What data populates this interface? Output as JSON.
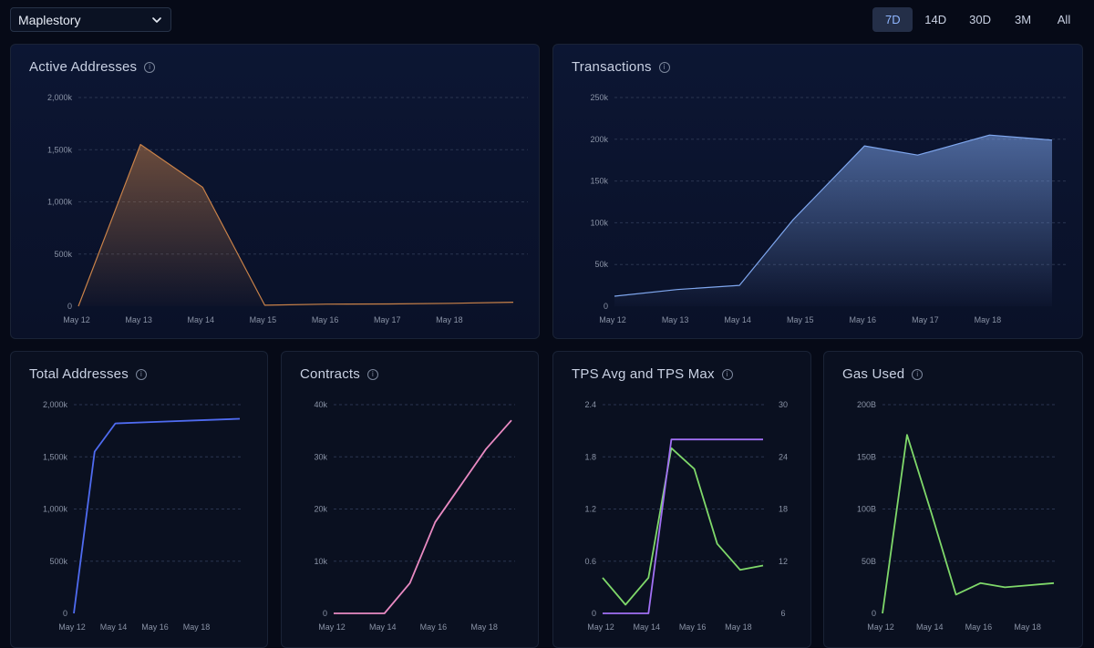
{
  "header": {
    "network_select": "Maplestory",
    "ranges": [
      "7D",
      "14D",
      "30D",
      "3M",
      "All"
    ],
    "active_range": "7D"
  },
  "colors": {
    "orange": "#c98249",
    "blue": "#7fa7ef",
    "royal": "#4f6bf0",
    "pink": "#e98ac2",
    "green": "#7fd86a",
    "purple": "#a170f4"
  },
  "chart_data": [
    {
      "id": "active",
      "type": "area",
      "title": "Active Addresses",
      "x_labels": [
        "May 12",
        "May 13",
        "May 14",
        "May 15",
        "May 16",
        "May 17",
        "May 18"
      ],
      "x": [
        0,
        1,
        2,
        3,
        4,
        5,
        6,
        7
      ],
      "series": [
        {
          "name": "Active Addresses",
          "values": [
            0,
            1550000,
            1140000,
            10000,
            20000,
            22000,
            28000,
            38000
          ],
          "color": "#c98249"
        }
      ],
      "yticks": [
        0,
        500000,
        1000000,
        1500000,
        2000000
      ],
      "ytick_labels": [
        "0",
        "500k",
        "1,000k",
        "1,500k",
        "2,000k"
      ],
      "ylim": [
        0,
        2000000
      ]
    },
    {
      "id": "tx",
      "type": "area",
      "title": "Transactions",
      "x_labels": [
        "May 12",
        "May 13",
        "May 14",
        "May 15",
        "May 16",
        "May 17",
        "May 18"
      ],
      "x": [
        0,
        1,
        2,
        2.85,
        4,
        4.85,
        6,
        7
      ],
      "series": [
        {
          "name": "Transactions",
          "values": [
            12000,
            20000,
            25000,
            103000,
            192000,
            181000,
            205000,
            199000
          ],
          "color": "#7fa7ef"
        }
      ],
      "yticks": [
        0,
        50000,
        100000,
        150000,
        200000,
        250000
      ],
      "ytick_labels": [
        "0",
        "50k",
        "100k",
        "150k",
        "200k",
        "250k"
      ],
      "ylim": [
        0,
        250000
      ]
    },
    {
      "id": "total",
      "type": "line",
      "title": "Total Addresses",
      "x_labels": [
        "May 12",
        "May 14",
        "May 16",
        "May 18"
      ],
      "x": [
        0,
        0.5,
        1,
        2,
        3,
        4
      ],
      "series": [
        {
          "name": "Total Addresses",
          "values": [
            0,
            1550000,
            1820000,
            1835000,
            1850000,
            1865000
          ],
          "color": "#4f6bf0"
        }
      ],
      "yticks": [
        0,
        500000,
        1000000,
        1500000,
        2000000
      ],
      "ytick_labels": [
        "0",
        "500k",
        "1,000k",
        "1,500k",
        "2,000k"
      ],
      "ylim": [
        0,
        2000000
      ]
    },
    {
      "id": "contracts",
      "type": "line",
      "title": "Contracts",
      "x_labels": [
        "May 12",
        "May 14",
        "May 16",
        "May 18"
      ],
      "x": [
        0,
        1,
        1.5,
        2,
        2.5,
        3,
        3.5
      ],
      "series": [
        {
          "name": "Contracts",
          "values": [
            0,
            0,
            5800,
            17500,
            24500,
            31500,
            37000
          ],
          "color": "#e98ac2"
        }
      ],
      "yticks": [
        0,
        10000,
        20000,
        30000,
        40000
      ],
      "ytick_labels": [
        "0",
        "10k",
        "20k",
        "30k",
        "40k"
      ],
      "ylim": [
        0,
        40000
      ]
    },
    {
      "id": "tps",
      "type": "line",
      "title": "TPS Avg and TPS Max",
      "x_labels": [
        "May 12",
        "May 14",
        "May 16",
        "May 18"
      ],
      "x": [
        0,
        0.5,
        1,
        1.5,
        2,
        2.5,
        3,
        3.5
      ],
      "series": [
        {
          "name": "TPS Avg",
          "axis": "left",
          "values": [
            0.41,
            0.1,
            0.41,
            1.9,
            1.66,
            0.8,
            0.5,
            0.55
          ],
          "color": "#7fd86a"
        },
        {
          "name": "TPS Max",
          "axis": "right",
          "values": [
            6,
            6,
            6,
            26,
            26,
            26,
            26,
            26
          ],
          "color": "#a170f4"
        }
      ],
      "yticks": [
        0,
        0.6,
        1.2,
        1.8,
        2.4
      ],
      "ytick_labels": [
        "0",
        "0.6",
        "1.2",
        "1.8",
        "2.4"
      ],
      "ylim": [
        0,
        2.4
      ],
      "y2ticks": [
        6,
        12,
        18,
        24,
        30
      ],
      "y2tick_labels": [
        "6",
        "12",
        "18",
        "24",
        "30"
      ],
      "y2lim": [
        6,
        30
      ]
    },
    {
      "id": "gas",
      "type": "line",
      "title": "Gas Used",
      "x_labels": [
        "May 12",
        "May 14",
        "May 16",
        "May 18"
      ],
      "x": [
        0,
        0.5,
        1,
        1.5,
        2,
        2.5,
        3,
        3.5
      ],
      "series": [
        {
          "name": "Gas Used",
          "values": [
            0,
            171000000000,
            96000000000,
            18000000000,
            29000000000,
            25000000000,
            27000000000,
            29000000000
          ],
          "color": "#7fd86a"
        }
      ],
      "yticks": [
        0,
        50000000000,
        100000000000,
        150000000000,
        200000000000
      ],
      "ytick_labels": [
        "0",
        "50B",
        "100B",
        "150B",
        "200B"
      ],
      "ylim": [
        0,
        200000000000
      ]
    }
  ]
}
